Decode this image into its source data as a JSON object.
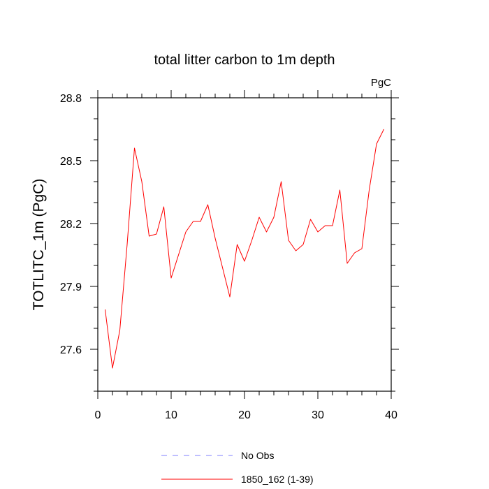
{
  "chart_data": {
    "type": "line",
    "title": "total litter carbon to 1m depth",
    "units_label": "PgC",
    "ylabel": "TOTLITC_1m  (PgC)",
    "xlabel": "",
    "xlim": [
      0,
      40
    ],
    "ylim": [
      27.4,
      28.8
    ],
    "x_ticks": [
      0,
      10,
      20,
      30,
      40
    ],
    "y_ticks": [
      27.6,
      27.9,
      28.2,
      28.5,
      28.8
    ],
    "y_tick_labels": [
      "27.6",
      "27.9",
      "28.2",
      "28.5",
      "28.8"
    ],
    "x_minor_step": 2,
    "y_minor_step": 0.1,
    "grid": false,
    "legend_placement": "bottom",
    "legend": [
      {
        "label": "No Obs",
        "color": "#7f7fff",
        "dash": true
      },
      {
        "label": "1850_162 (1-39)",
        "color": "#ff0000",
        "dash": false
      }
    ],
    "series": [
      {
        "name": "1850_162 (1-39)",
        "color": "#ff0000",
        "x": [
          1,
          2,
          3,
          4,
          5,
          6,
          7,
          8,
          9,
          10,
          11,
          12,
          13,
          14,
          15,
          16,
          17,
          18,
          19,
          20,
          21,
          22,
          23,
          24,
          25,
          26,
          27,
          28,
          29,
          30,
          31,
          32,
          33,
          34,
          35,
          36,
          37,
          38,
          39
        ],
        "y": [
          27.79,
          27.51,
          27.69,
          28.1,
          28.56,
          28.4,
          28.14,
          28.15,
          28.28,
          27.94,
          28.05,
          28.16,
          28.21,
          28.21,
          28.29,
          28.13,
          27.99,
          27.85,
          28.1,
          28.02,
          28.12,
          28.23,
          28.16,
          28.23,
          28.4,
          28.12,
          28.07,
          28.1,
          28.22,
          28.16,
          28.19,
          28.19,
          28.36,
          28.01,
          28.06,
          28.08,
          28.36,
          28.58,
          28.65
        ]
      }
    ]
  }
}
